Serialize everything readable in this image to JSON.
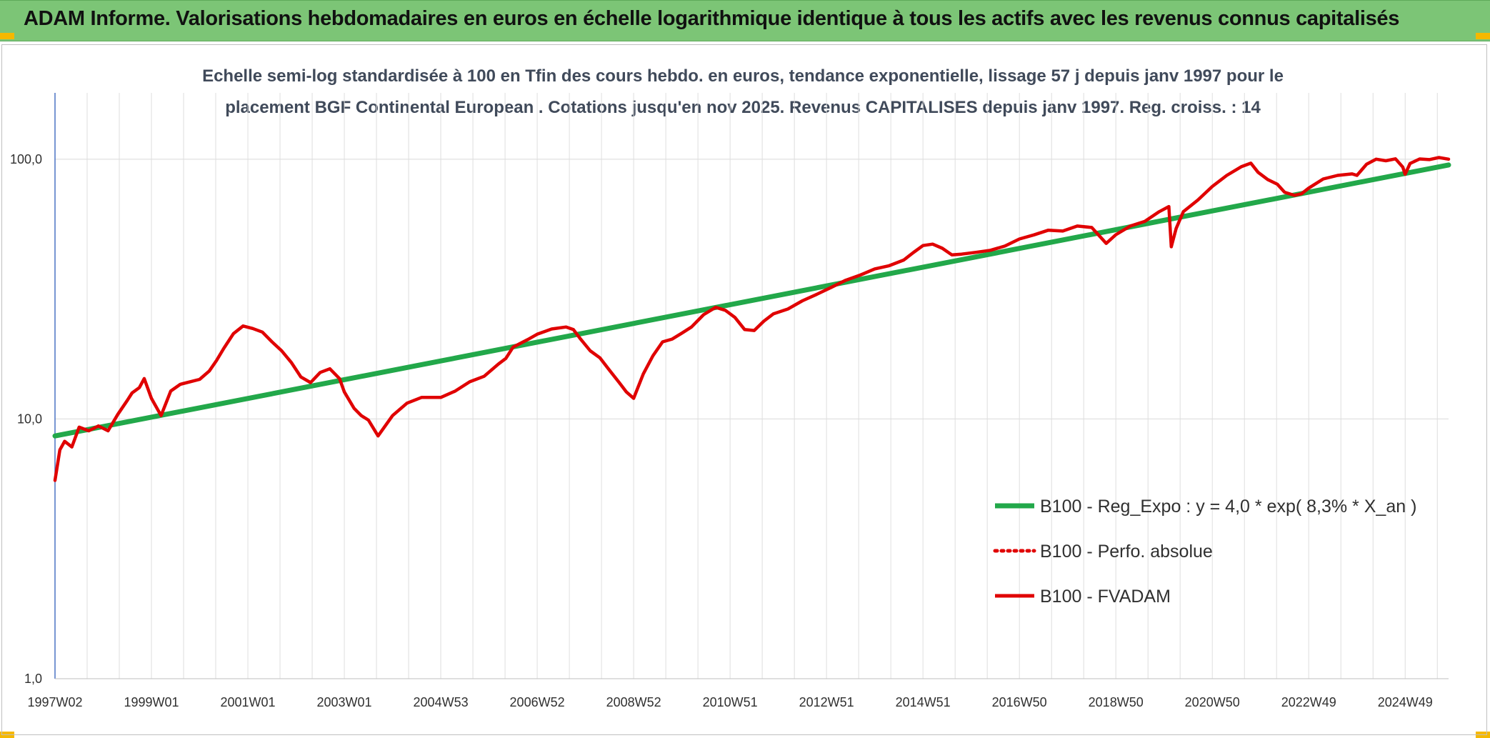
{
  "banner": {
    "title": "ADAM Informe. Valorisations hebdomadaires en euros en échelle logarithmique identique à tous les actifs avec les revenus connus capitalisés",
    "color": "#7cc576"
  },
  "chart_data": {
    "type": "line",
    "subtitle_lines": [
      "Echelle semi-log standardisée à 100 en Tfin des cours hebdo. en euros, tendance exponentielle, lissage 57 j depuis janv 1997 pour le",
      "placement BGF Continental European . Cotations jusqu'en nov 2025. Revenus CAPITALISES depuis janv 1997. Reg. croiss. : 14"
    ],
    "y_scale": "log",
    "ylim": [
      1,
      180
    ],
    "y_ticks": [
      {
        "value": 1,
        "label": "1,0"
      },
      {
        "value": 10,
        "label": "10,0"
      },
      {
        "value": 100,
        "label": "100,0"
      }
    ],
    "xlim": [
      1997.0,
      2025.9
    ],
    "x_ticks": [
      {
        "value": 1997.0,
        "label": "1997W02"
      },
      {
        "value": 1999.0,
        "label": "1999W01"
      },
      {
        "value": 2001.0,
        "label": "2001W01"
      },
      {
        "value": 2003.0,
        "label": "2003W01"
      },
      {
        "value": 2005.0,
        "label": "2004W53"
      },
      {
        "value": 2007.0,
        "label": "2006W52"
      },
      {
        "value": 2009.0,
        "label": "2008W52"
      },
      {
        "value": 2011.0,
        "label": "2010W51"
      },
      {
        "value": 2013.0,
        "label": "2012W51"
      },
      {
        "value": 2015.0,
        "label": "2014W51"
      },
      {
        "value": 2017.0,
        "label": "2016W50"
      },
      {
        "value": 2019.0,
        "label": "2018W50"
      },
      {
        "value": 2021.0,
        "label": "2020W50"
      },
      {
        "value": 2023.0,
        "label": "2022W49"
      },
      {
        "value": 2025.0,
        "label": "2024W49"
      }
    ],
    "grid": "vertical and horizontal",
    "legend_position": "right-center",
    "series": [
      {
        "name": "B100 - Reg_Expo : y = 4,0 * exp( 8,3% *  X_an )",
        "color": "#22a84a",
        "style": "solid",
        "x": [
          1997.0,
          2025.9
        ],
        "y": [
          8.6,
          95
        ]
      },
      {
        "name": "B100 - Perfo. absolue",
        "color": "#e00000",
        "style": "dotted",
        "x": [],
        "y": []
      },
      {
        "name": "B100 - FVADAM",
        "color": "#e00000",
        "style": "solid",
        "x": [
          1997.0,
          1997.1,
          1997.2,
          1997.35,
          1997.5,
          1997.7,
          1997.9,
          1998.1,
          1998.3,
          1998.5,
          1998.6,
          1998.75,
          1998.85,
          1999.0,
          1999.2,
          1999.4,
          1999.6,
          1999.8,
          2000.0,
          2000.2,
          2000.35,
          2000.5,
          2000.7,
          2000.9,
          2001.1,
          2001.3,
          2001.5,
          2001.7,
          2001.9,
          2002.1,
          2002.3,
          2002.5,
          2002.7,
          2002.9,
          2003.0,
          2003.2,
          2003.35,
          2003.5,
          2003.7,
          2004.0,
          2004.3,
          2004.6,
          2005.0,
          2005.3,
          2005.6,
          2005.9,
          2006.2,
          2006.35,
          2006.5,
          2006.8,
          2007.0,
          2007.3,
          2007.6,
          2007.75,
          2007.9,
          2008.1,
          2008.3,
          2008.5,
          2008.7,
          2008.85,
          2009.0,
          2009.2,
          2009.4,
          2009.6,
          2009.8,
          2010.0,
          2010.2,
          2010.45,
          2010.7,
          2010.9,
          2011.1,
          2011.3,
          2011.5,
          2011.7,
          2011.9,
          2012.2,
          2012.5,
          2012.8,
          2013.1,
          2013.4,
          2013.7,
          2014.0,
          2014.3,
          2014.6,
          2014.8,
          2015.0,
          2015.2,
          2015.4,
          2015.6,
          2015.8,
          2016.1,
          2016.4,
          2016.7,
          2017.0,
          2017.3,
          2017.6,
          2017.9,
          2018.2,
          2018.5,
          2018.8,
          2019.0,
          2019.3,
          2019.6,
          2019.9,
          2020.1,
          2020.15,
          2020.25,
          2020.4,
          2020.7,
          2021.0,
          2021.3,
          2021.6,
          2021.8,
          2021.95,
          2022.15,
          2022.35,
          2022.5,
          2022.7,
          2022.85,
          2023.0,
          2023.3,
          2023.6,
          2023.9,
          2024.0,
          2024.2,
          2024.4,
          2024.6,
          2024.8,
          2024.95,
          2025.0,
          2025.1,
          2025.3,
          2025.5,
          2025.7,
          2025.9
        ],
        "y": [
          5.8,
          7.6,
          8.2,
          7.8,
          9.3,
          9.0,
          9.4,
          9.0,
          10.4,
          11.8,
          12.6,
          13.2,
          14.3,
          12.0,
          10.3,
          12.8,
          13.6,
          13.9,
          14.2,
          15.3,
          16.8,
          18.7,
          21.3,
          22.8,
          22.3,
          21.6,
          19.8,
          18.3,
          16.5,
          14.5,
          13.8,
          15.1,
          15.6,
          14.3,
          12.7,
          11.0,
          10.3,
          9.9,
          8.6,
          10.3,
          11.5,
          12.1,
          12.1,
          12.8,
          13.9,
          14.6,
          16.3,
          17.1,
          18.9,
          20.2,
          21.2,
          22.2,
          22.6,
          22.1,
          20.3,
          18.3,
          17.2,
          15.4,
          13.8,
          12.7,
          12.0,
          14.9,
          17.5,
          19.8,
          20.3,
          21.4,
          22.6,
          25.2,
          26.9,
          26.2,
          24.6,
          22.1,
          21.9,
          23.8,
          25.4,
          26.5,
          28.5,
          30.2,
          32.1,
          34.2,
          35.8,
          37.8,
          38.9,
          40.9,
          43.7,
          46.5,
          47.1,
          45.4,
          42.8,
          43.1,
          43.8,
          44.6,
          46.3,
          49.3,
          51.1,
          53.3,
          52.9,
          55.3,
          54.6,
          47.4,
          51.2,
          55.3,
          57.6,
          62.8,
          65.7,
          46.0,
          54.1,
          62.8,
          69.6,
          78.5,
          86.6,
          93.5,
          96.5,
          89.0,
          83.5,
          80.1,
          74.6,
          72.6,
          73.6,
          77.4,
          83.9,
          86.6,
          87.8,
          86.6,
          95.6,
          100.0,
          98.6,
          100.3,
          93.2,
          87.5,
          96.2,
          100.2,
          99.6,
          101.5,
          100.0
        ]
      }
    ]
  }
}
